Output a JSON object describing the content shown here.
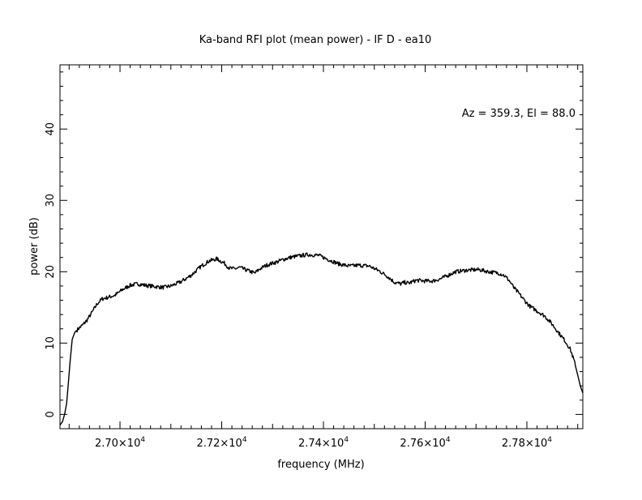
{
  "chart_data": {
    "type": "line",
    "title": "Ka-band RFI plot (mean power) - IF D - ea10",
    "xlabel": "frequency (MHz)",
    "ylabel": "power (dB)",
    "annotation": "Az = 359.3, El = 88.0",
    "xlim": [
      26882,
      27910
    ],
    "ylim": [
      -2,
      49
    ],
    "x_ticks": [
      {
        "value": 27000,
        "label": "2.70×10",
        "exp": "4"
      },
      {
        "value": 27200,
        "label": "2.72×10",
        "exp": "4"
      },
      {
        "value": 27400,
        "label": "2.74×10",
        "exp": "4"
      },
      {
        "value": 27600,
        "label": "2.76×10",
        "exp": "4"
      },
      {
        "value": 27800,
        "label": "2.78×10",
        "exp": "4"
      }
    ],
    "y_ticks": [
      {
        "value": 0,
        "label": "0"
      },
      {
        "value": 10,
        "label": "10"
      },
      {
        "value": 20,
        "label": "20"
      },
      {
        "value": 30,
        "label": "30"
      },
      {
        "value": 40,
        "label": "40"
      }
    ],
    "grid": false,
    "line_color": "#000000",
    "series": [
      {
        "x": [
          26882,
          26887,
          26891,
          26895,
          26898,
          26902,
          26906,
          26911,
          26918,
          26926,
          26935,
          26945,
          26955,
          26965,
          26976,
          26990,
          27005,
          27020,
          27035,
          27050,
          27060,
          27072,
          27085,
          27100,
          27120,
          27140,
          27160,
          27175,
          27190,
          27205,
          27215,
          27225,
          27235,
          27250,
          27265,
          27275,
          27285,
          27295,
          27310,
          27320,
          27335,
          27350,
          27370,
          27390,
          27410,
          27430,
          27450,
          27470,
          27490,
          27510,
          27525,
          27540,
          27552,
          27560,
          27568,
          27575,
          27583,
          27600,
          27615,
          27630,
          27645,
          27660,
          27680,
          27705,
          27725,
          27745,
          27755,
          27765,
          27775,
          27785,
          27795,
          27805,
          27820,
          27835,
          27848,
          27862,
          27874,
          27885,
          27893,
          27900,
          27905,
          27910
        ],
        "y": [
          -1.5,
          -1.0,
          0,
          1.5,
          4,
          7.5,
          10.5,
          11.5,
          12.0,
          12.5,
          13.2,
          14.3,
          15.5,
          16.2,
          16.4,
          16.7,
          17.5,
          18.1,
          18.3,
          18.1,
          18.0,
          17.9,
          17.8,
          18.0,
          18.6,
          19.5,
          20.8,
          21.5,
          21.8,
          21.2,
          20.5,
          20.4,
          20.6,
          20.2,
          19.8,
          20.4,
          20.8,
          21.1,
          21.4,
          21.7,
          22.0,
          22.2,
          22.4,
          22.3,
          21.7,
          21.1,
          20.8,
          20.9,
          20.8,
          20.1,
          19.4,
          18.5,
          18.3,
          18.5,
          18.4,
          18.6,
          18.8,
          18.7,
          18.7,
          19.0,
          19.5,
          20.0,
          20.2,
          20.3,
          20.0,
          19.8,
          19.5,
          18.8,
          17.7,
          16.9,
          16.0,
          15.2,
          14.5,
          13.8,
          12.8,
          11.5,
          10.4,
          9.2,
          7.5,
          5.5,
          4.0,
          3.0
        ]
      }
    ]
  }
}
